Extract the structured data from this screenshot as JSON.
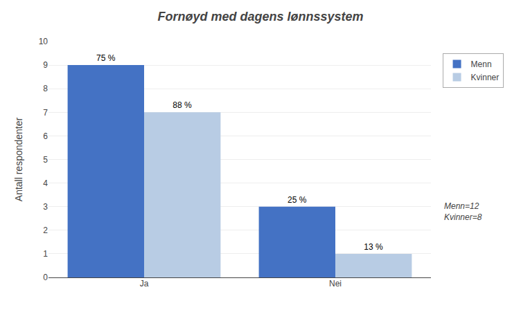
{
  "chart_data": {
    "type": "bar",
    "title": "Fornøyd med dagens lønnssystem",
    "categories": [
      "Ja",
      "Nei"
    ],
    "series": [
      {
        "name": "Menn",
        "color": "#4472C4",
        "values": [
          9,
          3
        ],
        "value_labels": [
          "75 %",
          "25 %"
        ]
      },
      {
        "name": "Kvinner",
        "color": "#B8CCE4",
        "values": [
          7,
          1
        ],
        "value_labels": [
          "88 %",
          "13 %"
        ]
      }
    ],
    "ylabel": "Antall respondenter",
    "ylim": [
      0,
      10
    ],
    "yticks": [
      0,
      1,
      2,
      3,
      4,
      5,
      6,
      7,
      8,
      9,
      10
    ],
    "grid": true,
    "legend": "right",
    "data_labels": true,
    "annotations": [
      "Menn=12",
      "Kvinner=8"
    ]
  }
}
